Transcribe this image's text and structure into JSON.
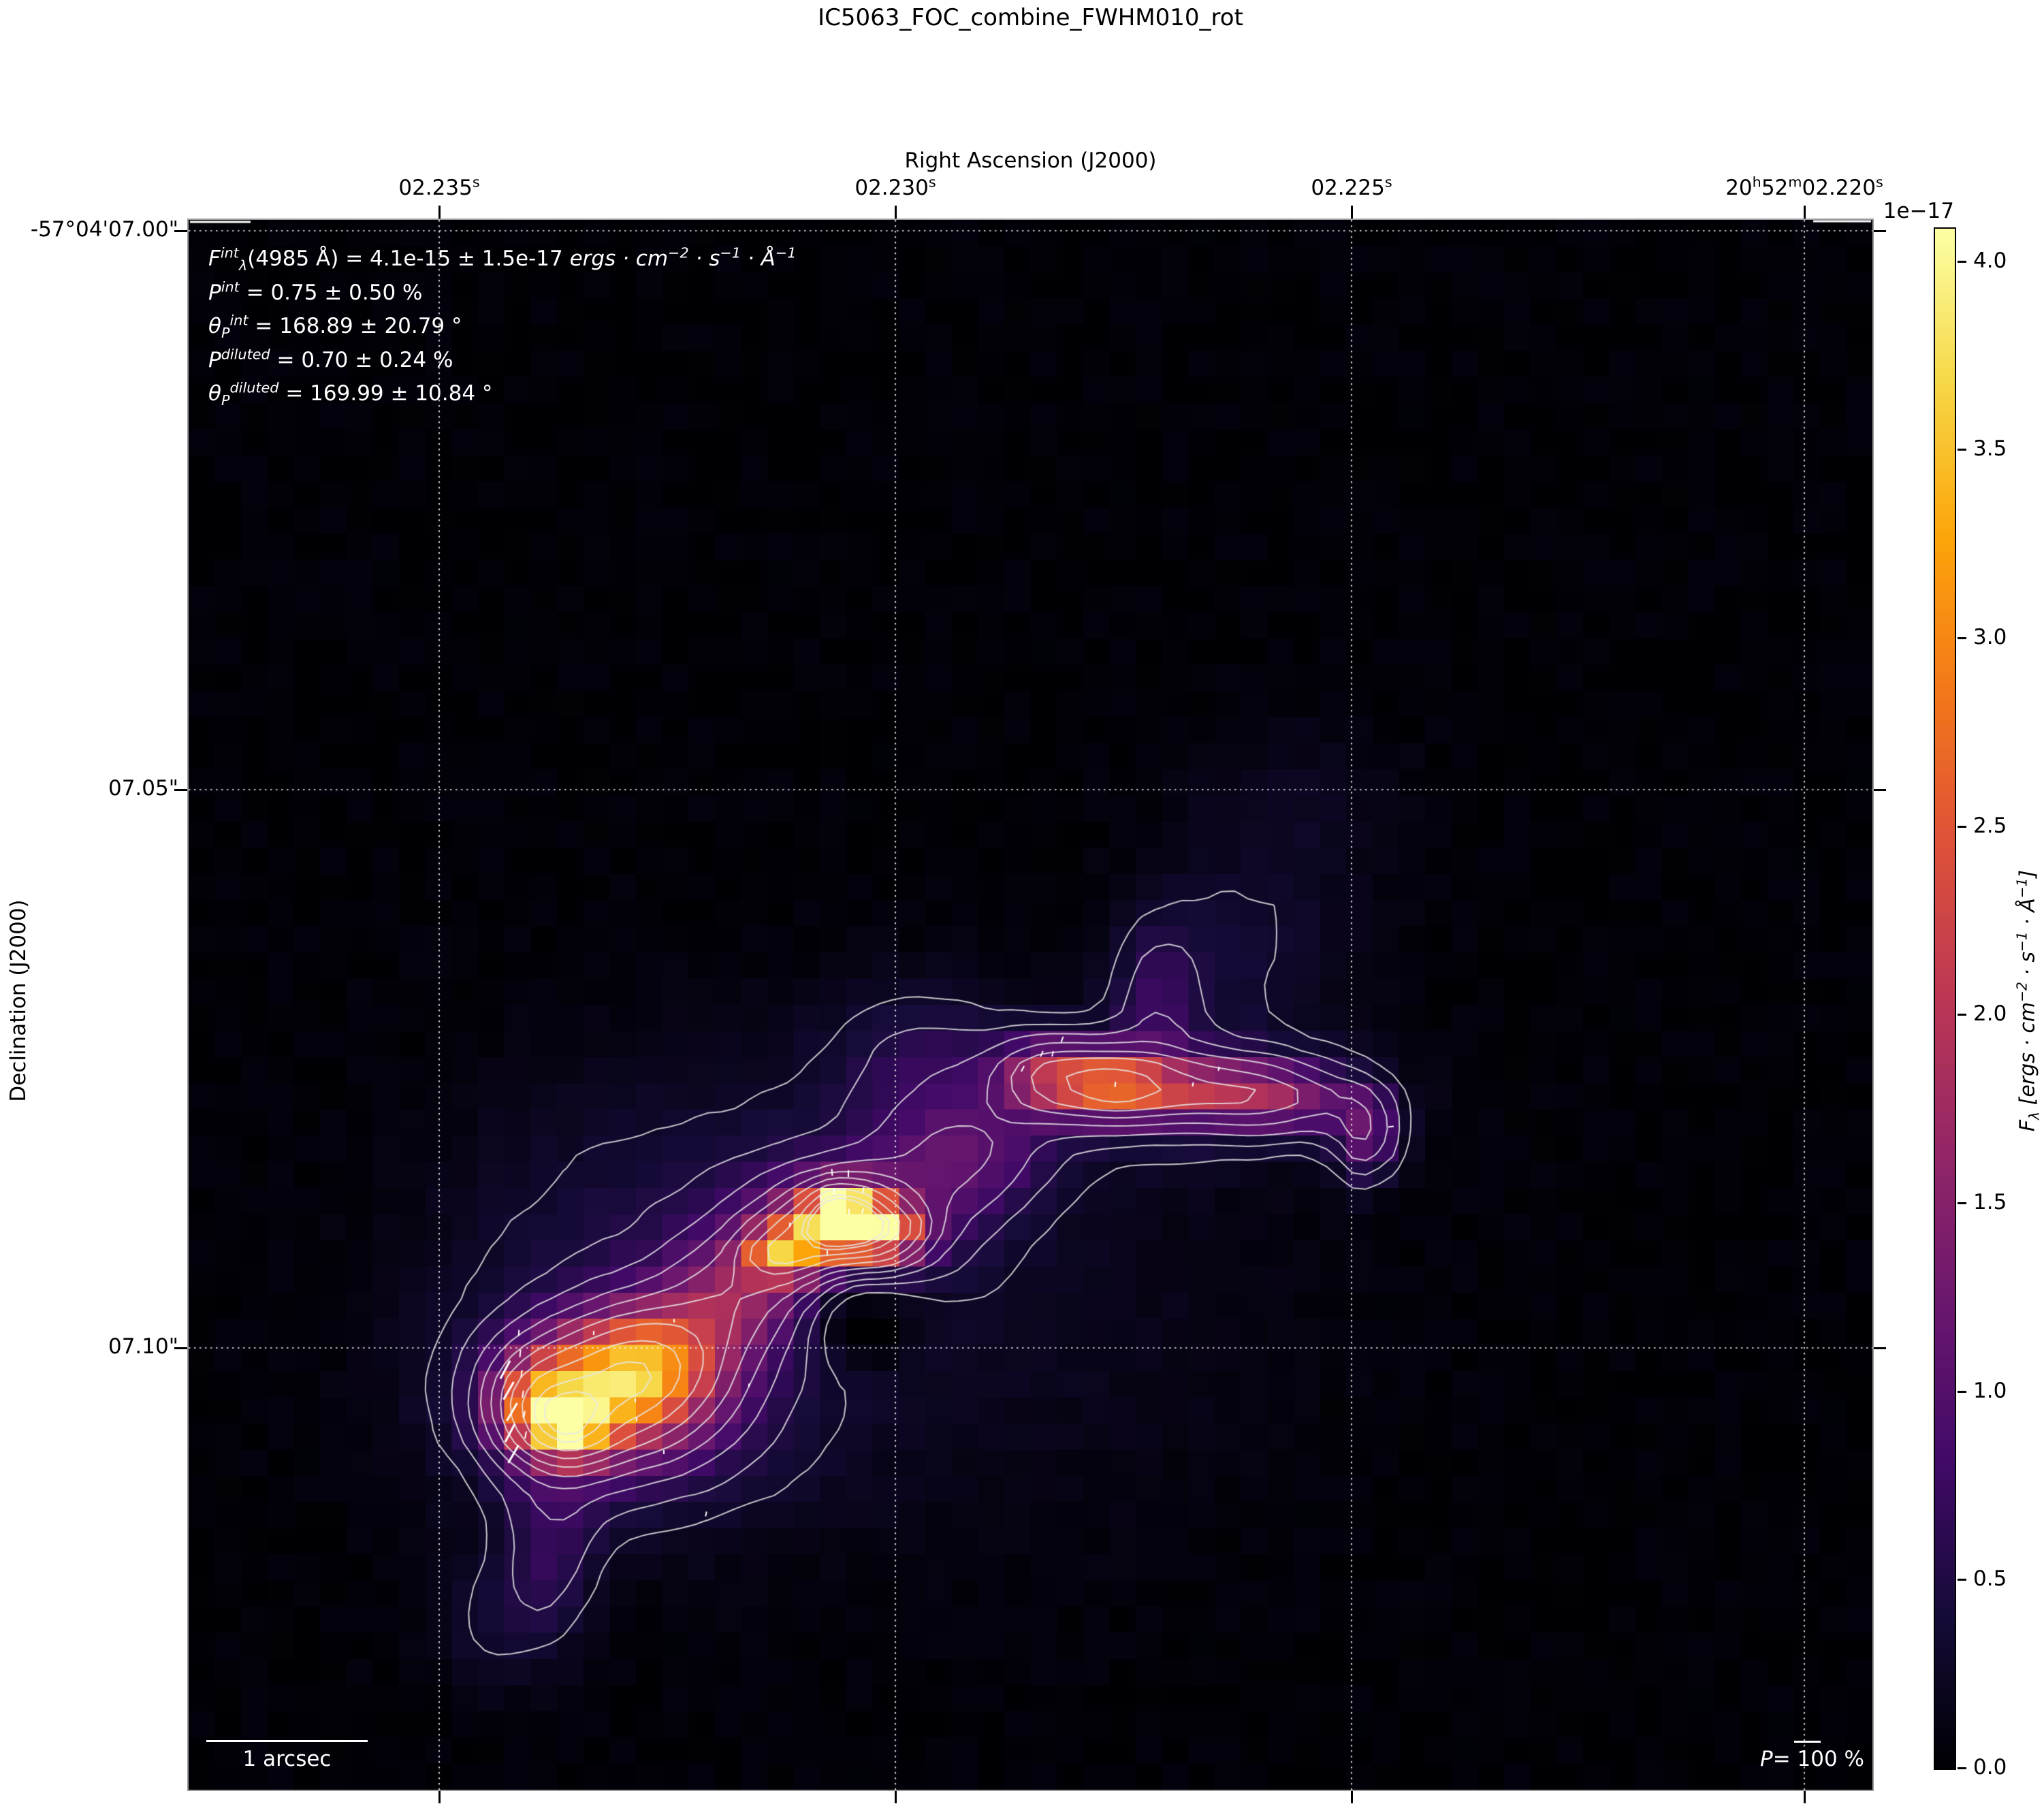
{
  "title": "IC5063_FOC_combine_FWHM010_rot",
  "axes": {
    "x_label": "Right Ascension (J2000)",
    "y_label": "Declination (J2000)",
    "x_ticks": [
      {
        "pos": 645,
        "segs": [
          {
            "t": "02.235"
          },
          {
            "t": "s",
            "s": "sup"
          }
        ]
      },
      {
        "pos": 1315,
        "segs": [
          {
            "t": "02.230"
          },
          {
            "t": "s",
            "s": "sup"
          }
        ]
      },
      {
        "pos": 1985,
        "segs": [
          {
            "t": "02.225"
          },
          {
            "t": "s",
            "s": "sup"
          }
        ]
      },
      {
        "pos": 2650,
        "segs": [
          {
            "t": "20"
          },
          {
            "t": "h",
            "s": "sup"
          },
          {
            "t": "52"
          },
          {
            "t": "m",
            "s": "sup"
          },
          {
            "t": "02.220"
          },
          {
            "t": "s",
            "s": "sup"
          }
        ]
      }
    ],
    "y_ticks": [
      {
        "pos": 339,
        "label": "-57°04'07.00\""
      },
      {
        "pos": 1160,
        "label": "07.05\""
      },
      {
        "pos": 1980,
        "label": "07.10\""
      }
    ]
  },
  "annotations": {
    "lines": [
      [
        {
          "t": "F",
          "s": "i"
        },
        {
          "t": "int",
          "s": "sup i"
        },
        {
          "t": "λ",
          "s": "sub i"
        },
        {
          "t": "(4985 Å) = 4.1e-15 ± 1.5e-17 "
        },
        {
          "t": "ergs · cm",
          "s": "i"
        },
        {
          "t": "−2",
          "s": "sup i"
        },
        {
          "t": " · s",
          "s": "i"
        },
        {
          "t": "−1",
          "s": "sup i"
        },
        {
          "t": " · Å",
          "s": "i"
        },
        {
          "t": "−1",
          "s": "sup i"
        }
      ],
      [
        {
          "t": "P",
          "s": "i"
        },
        {
          "t": "int",
          "s": "sup i"
        },
        {
          "t": " = 0.75 ± 0.50 %"
        }
      ],
      [
        {
          "t": "θ",
          "s": "i"
        },
        {
          "t": "P",
          "s": "sub i"
        },
        {
          "t": "int",
          "s": "sup i"
        },
        {
          "t": " = 168.89 ± 20.79 °"
        }
      ],
      [
        {
          "t": "P",
          "s": "i"
        },
        {
          "t": "diluted",
          "s": "sup i"
        },
        {
          "t": " = 0.70 ± 0.24 %"
        }
      ],
      [
        {
          "t": "θ",
          "s": "i"
        },
        {
          "t": "P",
          "s": "sub i"
        },
        {
          "t": "diluted",
          "s": "sup i"
        },
        {
          "t": " = 169.99 ± 10.84 °"
        }
      ]
    ]
  },
  "colorbar": {
    "offset_text": "1e−17",
    "tick_labels": [
      "4.0",
      "3.5",
      "3.0",
      "2.5",
      "2.0",
      "1.5",
      "1.0",
      "0.5",
      "0.0"
    ],
    "tick_values": [
      4.0,
      3.5,
      3.0,
      2.5,
      2.0,
      1.5,
      1.0,
      0.5,
      0.0
    ],
    "label_segs": [
      {
        "t": "F",
        "s": "i"
      },
      {
        "t": "λ",
        "s": "sub i"
      },
      {
        "t": " [",
        "s": "i"
      },
      {
        "t": "ergs · cm",
        "s": "i"
      },
      {
        "t": "−2",
        "s": "sup i"
      },
      {
        "t": " · s",
        "s": "i"
      },
      {
        "t": "−1",
        "s": "sup i"
      },
      {
        "t": " · Å",
        "s": "i"
      },
      {
        "t": "−1",
        "s": "sup i"
      },
      {
        "t": "]",
        "s": "i"
      }
    ],
    "vmin": 0.0,
    "vmax": 4.09,
    "colormap": "inferno"
  },
  "scalebar": {
    "label": "1 arcsec"
  },
  "pol_legend": {
    "segs": [
      {
        "t": "P",
        "s": "i"
      },
      {
        "t": "= 100 %"
      }
    ]
  },
  "chart_data": {
    "type": "heatmap",
    "flux_scale": "1e-17",
    "flux_range": [
      0.0,
      4.09
    ],
    "x_tick_values_s": [
      2.235,
      2.23,
      2.225,
      2.22
    ],
    "y_tick_values_arcsec": [
      7.0,
      7.05,
      7.1
    ],
    "grid": {
      "cols": 64,
      "rows": 60
    },
    "blobs": [
      [
        0.387,
        0.638,
        0.0095,
        0.0085,
        4.8
      ],
      [
        0.389,
        0.636,
        0.021,
        0.014,
        2.4
      ],
      [
        0.354,
        0.657,
        0.016,
        0.0115,
        2.2
      ],
      [
        0.412,
        0.646,
        0.016,
        0.011,
        1.9
      ],
      [
        0.389,
        0.64,
        0.046,
        0.03,
        1.0
      ],
      [
        0.244,
        0.748,
        0.034,
        0.026,
        1.8
      ],
      [
        0.276,
        0.727,
        0.03,
        0.024,
        1.6
      ],
      [
        0.226,
        0.771,
        0.016,
        0.013,
        1.8
      ],
      [
        0.207,
        0.755,
        0.018,
        0.02,
        1.5
      ],
      [
        0.256,
        0.753,
        0.064,
        0.047,
        0.95
      ],
      [
        0.325,
        0.686,
        0.03,
        0.025,
        1.1
      ],
      [
        0.397,
        0.695,
        0.026,
        0.022,
        -0.55
      ],
      [
        0.547,
        0.55,
        0.022,
        0.014,
        1.55
      ],
      [
        0.509,
        0.545,
        0.02,
        0.016,
        1.25
      ],
      [
        0.596,
        0.554,
        0.042,
        0.013,
        1.3
      ],
      [
        0.652,
        0.562,
        0.03,
        0.015,
        0.8
      ],
      [
        0.699,
        0.583,
        0.013,
        0.02,
        1.0
      ],
      [
        0.583,
        0.554,
        0.075,
        0.03,
        0.55
      ],
      [
        0.575,
        0.493,
        0.018,
        0.034,
        0.5
      ],
      [
        0.462,
        0.597,
        0.036,
        0.026,
        0.75
      ],
      [
        0.624,
        0.463,
        0.045,
        0.04,
        0.3
      ],
      [
        0.656,
        0.376,
        0.045,
        0.04,
        0.2
      ],
      [
        0.216,
        0.844,
        0.02,
        0.04,
        0.5
      ],
      [
        0.183,
        0.892,
        0.026,
        0.03,
        0.32
      ],
      [
        0.4,
        0.688,
        0.16,
        0.105,
        0.24
      ],
      [
        0.438,
        0.536,
        0.04,
        0.034,
        0.45
      ],
      [
        0.23,
        0.65,
        0.06,
        0.06,
        0.18
      ],
      [
        0.33,
        0.597,
        0.07,
        0.06,
        0.15
      ]
    ],
    "contour_levels": [
      0.3,
      0.5,
      0.75,
      1.05,
      1.4,
      1.8,
      2.3,
      2.9,
      3.55,
      3.95
    ],
    "contour_color": "#e8e8e8",
    "gridline_color": "#fcfcfc",
    "pol_vector_color": "#ffffff",
    "pol_vectors": [
      [
        742,
        2012,
        30,
        62,
        3
      ],
      [
        747,
        2043,
        30,
        60,
        3
      ],
      [
        752,
        2074,
        30,
        60,
        3
      ],
      [
        749,
        2105,
        30,
        62,
        3
      ],
      [
        754,
        2136,
        30,
        60,
        3
      ],
      [
        764,
        1988,
        11,
        85,
        2
      ],
      [
        766,
        2018,
        11,
        84,
        2
      ],
      [
        768,
        2048,
        11,
        82,
        2
      ],
      [
        770,
        2078,
        11,
        80,
        2
      ],
      [
        772,
        2108,
        11,
        80,
        2
      ],
      [
        762,
        1958,
        9,
        86,
        2
      ],
      [
        1222,
        1722,
        10,
        95,
        2
      ],
      [
        1246,
        1724,
        10,
        90,
        2
      ],
      [
        1268,
        1748,
        9,
        78,
        2
      ],
      [
        1225,
        1750,
        9,
        92,
        2
      ],
      [
        1247,
        1780,
        9,
        88,
        2
      ],
      [
        1267,
        1779,
        8,
        75,
        2
      ],
      [
        1205,
        1760,
        7,
        90,
        2
      ],
      [
        1215,
        1840,
        7,
        90,
        2
      ],
      [
        1560,
        1527,
        9,
        70,
        2
      ],
      [
        1530,
        1548,
        9,
        66,
        2
      ],
      [
        1502,
        1570,
        9,
        62,
        2
      ],
      [
        1546,
        1548,
        8,
        78,
        2
      ],
      [
        1638,
        1593,
        8,
        84,
        2
      ],
      [
        1790,
        1570,
        6,
        80,
        2
      ],
      [
        1752,
        1593,
        6,
        80,
        2
      ],
      [
        2043,
        1655,
        8,
        8,
        2
      ],
      [
        933,
        2057,
        6,
        90,
        2
      ],
      [
        935,
        2085,
        6,
        90,
        2
      ],
      [
        975,
        2133,
        6,
        90,
        2
      ],
      [
        1037,
        2224,
        7,
        78,
        2
      ],
      [
        1160,
        1799,
        6,
        90,
        2
      ],
      [
        872,
        1958,
        6,
        88,
        2
      ],
      [
        1100,
        2035,
        5,
        90,
        2
      ],
      [
        990,
        1940,
        5,
        90,
        2
      ]
    ],
    "corner_segments": [
      [
        279,
        326,
        368,
        326
      ],
      [
        2663,
        325,
        2748,
        325
      ]
    ]
  }
}
